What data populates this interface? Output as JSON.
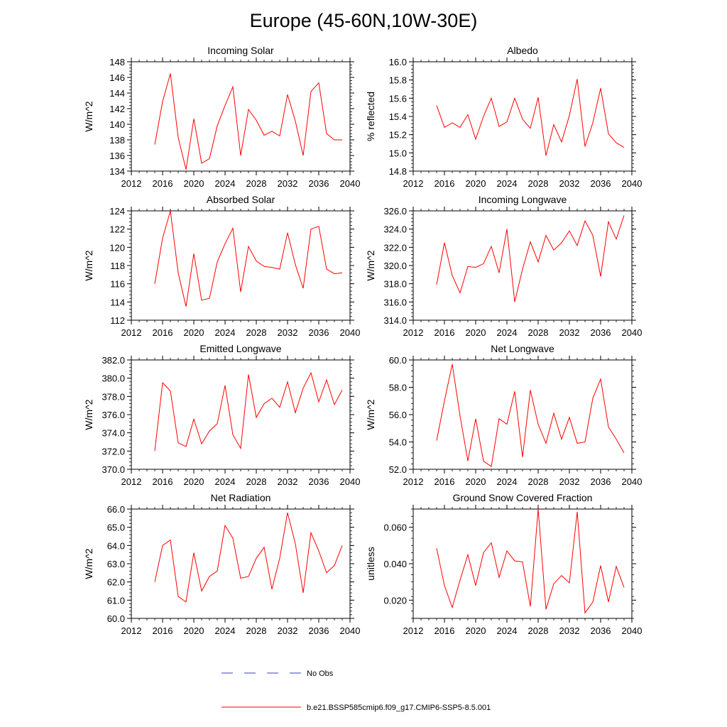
{
  "title": "Europe (45-60N,10W-30E)",
  "colors": {
    "model_line": "#ff0000",
    "obs_line": "#3a3ad8",
    "axis": "#000000"
  },
  "legend": {
    "obs_label": "No Obs",
    "model_label": "b.e21.BSSP585cmip6.f09_g17.CMIP6-SSP5-8.5.001"
  },
  "chart_data": [
    {
      "type": "line",
      "title": "Incoming Solar",
      "ylabel": "W/m^2",
      "xlim": [
        2012,
        2040
      ],
      "ylim": [
        134,
        148
      ],
      "xticks": [
        2012,
        2016,
        2020,
        2024,
        2028,
        2032,
        2036,
        2040
      ],
      "xtick_labels": [
        "2012",
        "2016",
        "2020",
        "2024",
        "2028",
        "2032",
        "2036",
        "2040"
      ],
      "yticks": [
        134,
        136,
        138,
        140,
        142,
        144,
        146,
        148
      ],
      "ytick_labels": [
        "134",
        "136",
        "138",
        "140",
        "142",
        "144",
        "146",
        "148"
      ],
      "x": [
        2015,
        2016,
        2017,
        2018,
        2019,
        2020,
        2021,
        2022,
        2023,
        2024,
        2025,
        2026,
        2027,
        2028,
        2029,
        2030,
        2031,
        2032,
        2033,
        2034,
        2035,
        2036,
        2037,
        2038,
        2039
      ],
      "series": [
        {
          "name": "b.e21.BSSP585cmip6.f09_g17.CMIP6-SSP5-8.5.001",
          "values": [
            137.4,
            142.9,
            146.5,
            138.3,
            134.2,
            140.7,
            135.0,
            135.6,
            139.8,
            142.4,
            144.8,
            136.0,
            141.9,
            140.5,
            138.6,
            139.1,
            138.5,
            143.8,
            140.4,
            136.0,
            144.2,
            145.3,
            138.8,
            138.0,
            138.0
          ]
        }
      ]
    },
    {
      "type": "line",
      "title": "Albedo",
      "ylabel": "% reflected",
      "xlim": [
        2012,
        2040
      ],
      "ylim": [
        14.8,
        16.0
      ],
      "xticks": [
        2012,
        2016,
        2020,
        2024,
        2028,
        2032,
        2036,
        2040
      ],
      "xtick_labels": [
        "2012",
        "2016",
        "2020",
        "2024",
        "2028",
        "2032",
        "2036",
        "2040"
      ],
      "yticks": [
        14.8,
        15.0,
        15.2,
        15.4,
        15.6,
        15.8,
        16.0
      ],
      "ytick_labels": [
        "14.8",
        "15.0",
        "15.2",
        "15.4",
        "15.6",
        "15.8",
        "16.0"
      ],
      "x": [
        2015,
        2016,
        2017,
        2018,
        2019,
        2020,
        2021,
        2022,
        2023,
        2024,
        2025,
        2026,
        2027,
        2028,
        2029,
        2030,
        2031,
        2032,
        2033,
        2034,
        2035,
        2036,
        2037,
        2038,
        2039
      ],
      "series": [
        {
          "name": "b.e21.BSSP585cmip6.f09_g17.CMIP6-SSP5-8.5.001",
          "values": [
            15.52,
            15.28,
            15.33,
            15.28,
            15.42,
            15.15,
            15.4,
            15.6,
            15.29,
            15.34,
            15.6,
            15.37,
            15.27,
            15.61,
            14.97,
            15.31,
            15.12,
            15.41,
            15.81,
            15.07,
            15.33,
            15.71,
            15.21,
            15.11,
            15.06
          ]
        }
      ]
    },
    {
      "type": "line",
      "title": "Absorbed Solar",
      "ylabel": "W/m^2",
      "xlim": [
        2012,
        2040
      ],
      "ylim": [
        112,
        124
      ],
      "xticks": [
        2012,
        2016,
        2020,
        2024,
        2028,
        2032,
        2036,
        2040
      ],
      "xtick_labels": [
        "2012",
        "2016",
        "2020",
        "2024",
        "2028",
        "2032",
        "2036",
        "2040"
      ],
      "yticks": [
        112,
        114,
        116,
        118,
        120,
        122,
        124
      ],
      "ytick_labels": [
        "112",
        "114",
        "116",
        "118",
        "120",
        "122",
        "124"
      ],
      "x": [
        2015,
        2016,
        2017,
        2018,
        2019,
        2020,
        2021,
        2022,
        2023,
        2024,
        2025,
        2026,
        2027,
        2028,
        2029,
        2030,
        2031,
        2032,
        2033,
        2034,
        2035,
        2036,
        2037,
        2038,
        2039
      ],
      "series": [
        {
          "name": "b.e21.BSSP585cmip6.f09_g17.CMIP6-SSP5-8.5.001",
          "values": [
            116.0,
            121.0,
            124.0,
            117.2,
            113.5,
            119.3,
            114.2,
            114.4,
            118.4,
            120.4,
            122.1,
            115.1,
            120.1,
            118.5,
            117.9,
            117.8,
            117.6,
            121.6,
            118.1,
            115.5,
            122.0,
            122.3,
            117.6,
            117.1,
            117.2
          ]
        }
      ]
    },
    {
      "type": "line",
      "title": "Incoming Longwave",
      "ylabel": "W/m^2",
      "xlim": [
        2012,
        2040
      ],
      "ylim": [
        314,
        326
      ],
      "xticks": [
        2012,
        2016,
        2020,
        2024,
        2028,
        2032,
        2036,
        2040
      ],
      "xtick_labels": [
        "2012",
        "2016",
        "2020",
        "2024",
        "2028",
        "2032",
        "2036",
        "2040"
      ],
      "yticks": [
        314,
        316,
        318,
        320,
        322,
        324,
        326
      ],
      "ytick_labels": [
        "314.0",
        "316.0",
        "318.0",
        "320.0",
        "322.0",
        "324.0",
        "326.0"
      ],
      "x": [
        2015,
        2016,
        2017,
        2018,
        2019,
        2020,
        2021,
        2022,
        2023,
        2024,
        2025,
        2026,
        2027,
        2028,
        2029,
        2030,
        2031,
        2032,
        2033,
        2034,
        2035,
        2036,
        2037,
        2038,
        2039
      ],
      "series": [
        {
          "name": "b.e21.BSSP585cmip6.f09_g17.CMIP6-SSP5-8.5.001",
          "values": [
            317.9,
            322.5,
            318.9,
            317.0,
            319.9,
            319.8,
            320.2,
            322.1,
            319.2,
            324.0,
            316.0,
            319.6,
            322.6,
            320.4,
            323.3,
            321.7,
            322.5,
            323.8,
            322.2,
            324.9,
            323.3,
            318.8,
            324.8,
            322.9,
            325.5
          ]
        }
      ]
    },
    {
      "type": "line",
      "title": "Emitted Longwave",
      "ylabel": "W/m^2",
      "xlim": [
        2012,
        2040
      ],
      "ylim": [
        370,
        382
      ],
      "xticks": [
        2012,
        2016,
        2020,
        2024,
        2028,
        2032,
        2036,
        2040
      ],
      "xtick_labels": [
        "2012",
        "2016",
        "2020",
        "2024",
        "2028",
        "2032",
        "2036",
        "2040"
      ],
      "yticks": [
        370,
        372,
        374,
        376,
        378,
        380,
        382
      ],
      "ytick_labels": [
        "370.0",
        "372.0",
        "374.0",
        "376.0",
        "378.0",
        "380.0",
        "382.0"
      ],
      "x": [
        2015,
        2016,
        2017,
        2018,
        2019,
        2020,
        2021,
        2022,
        2023,
        2024,
        2025,
        2026,
        2027,
        2028,
        2029,
        2030,
        2031,
        2032,
        2033,
        2034,
        2035,
        2036,
        2037,
        2038,
        2039
      ],
      "series": [
        {
          "name": "b.e21.BSSP585cmip6.f09_g17.CMIP6-SSP5-8.5.001",
          "values": [
            372.0,
            379.5,
            378.6,
            372.9,
            372.5,
            375.5,
            372.8,
            374.2,
            375.0,
            379.2,
            373.8,
            372.3,
            380.4,
            375.7,
            377.2,
            377.8,
            376.8,
            379.6,
            376.2,
            378.9,
            380.6,
            377.4,
            379.8,
            377.1,
            378.7
          ]
        }
      ]
    },
    {
      "type": "line",
      "title": "Net Longwave",
      "ylabel": "W/m^2",
      "xlim": [
        2012,
        2040
      ],
      "ylim": [
        52,
        60
      ],
      "xticks": [
        2012,
        2016,
        2020,
        2024,
        2028,
        2032,
        2036,
        2040
      ],
      "xtick_labels": [
        "2012",
        "2016",
        "2020",
        "2024",
        "2028",
        "2032",
        "2036",
        "2040"
      ],
      "yticks": [
        52,
        54,
        56,
        58,
        60
      ],
      "ytick_labels": [
        "52.0",
        "54.0",
        "56.0",
        "58.0",
        "60.0"
      ],
      "x": [
        2015,
        2016,
        2017,
        2018,
        2019,
        2020,
        2021,
        2022,
        2023,
        2024,
        2025,
        2026,
        2027,
        2028,
        2029,
        2030,
        2031,
        2032,
        2033,
        2034,
        2035,
        2036,
        2037,
        2038,
        2039
      ],
      "series": [
        {
          "name": "b.e21.BSSP585cmip6.f09_g17.CMIP6-SSP5-8.5.001",
          "values": [
            54.1,
            57.0,
            59.7,
            55.9,
            52.6,
            55.7,
            52.6,
            52.2,
            55.7,
            55.3,
            57.7,
            52.9,
            57.8,
            55.3,
            53.9,
            56.1,
            54.2,
            55.8,
            53.9,
            54.0,
            57.2,
            58.6,
            55.1,
            54.2,
            53.2
          ]
        }
      ]
    },
    {
      "type": "line",
      "title": "Net Radiation",
      "ylabel": "W/m^2",
      "xlim": [
        2012,
        2040
      ],
      "ylim": [
        60,
        66
      ],
      "xticks": [
        2012,
        2016,
        2020,
        2024,
        2028,
        2032,
        2036,
        2040
      ],
      "xtick_labels": [
        "2012",
        "2016",
        "2020",
        "2024",
        "2028",
        "2032",
        "2036",
        "2040"
      ],
      "yticks": [
        60,
        61,
        62,
        63,
        64,
        65,
        66
      ],
      "ytick_labels": [
        "60.0",
        "61.0",
        "62.0",
        "63.0",
        "64.0",
        "65.0",
        "66.0"
      ],
      "x": [
        2015,
        2016,
        2017,
        2018,
        2019,
        2020,
        2021,
        2022,
        2023,
        2024,
        2025,
        2026,
        2027,
        2028,
        2029,
        2030,
        2031,
        2032,
        2033,
        2034,
        2035,
        2036,
        2037,
        2038,
        2039
      ],
      "series": [
        {
          "name": "b.e21.BSSP585cmip6.f09_g17.CMIP6-SSP5-8.5.001",
          "values": [
            62.0,
            64.0,
            64.3,
            61.2,
            60.9,
            63.6,
            61.5,
            62.3,
            62.6,
            65.1,
            64.4,
            62.2,
            62.3,
            63.3,
            63.9,
            61.6,
            63.3,
            65.8,
            64.1,
            61.4,
            64.7,
            63.7,
            62.5,
            62.9,
            64.0
          ]
        }
      ]
    },
    {
      "type": "line",
      "title": "Ground Snow Covered Fraction",
      "ylabel": "unitless",
      "xlim": [
        2012,
        2040
      ],
      "ylim": [
        0.01,
        0.07
      ],
      "xticks": [
        2012,
        2016,
        2020,
        2024,
        2028,
        2032,
        2036,
        2040
      ],
      "xtick_labels": [
        "2012",
        "2016",
        "2020",
        "2024",
        "2028",
        "2032",
        "2036",
        "2040"
      ],
      "yticks": [
        0.02,
        0.04,
        0.06
      ],
      "ytick_labels": [
        "0.020",
        "0.040",
        "0.060"
      ],
      "x": [
        2015,
        2016,
        2017,
        2018,
        2019,
        2020,
        2021,
        2022,
        2023,
        2024,
        2025,
        2026,
        2027,
        2028,
        2029,
        2030,
        2031,
        2032,
        2033,
        2034,
        2035,
        2036,
        2037,
        2038,
        2039
      ],
      "series": [
        {
          "name": "b.e21.BSSP585cmip6.f09_g17.CMIP6-SSP5-8.5.001",
          "values": [
            0.0485,
            0.028,
            0.016,
            0.031,
            0.045,
            0.028,
            0.046,
            0.0515,
            0.0325,
            0.047,
            0.0415,
            0.041,
            0.0165,
            0.07,
            0.015,
            0.029,
            0.0335,
            0.0295,
            0.0685,
            0.013,
            0.019,
            0.039,
            0.019,
            0.0385,
            0.027
          ]
        }
      ]
    }
  ]
}
